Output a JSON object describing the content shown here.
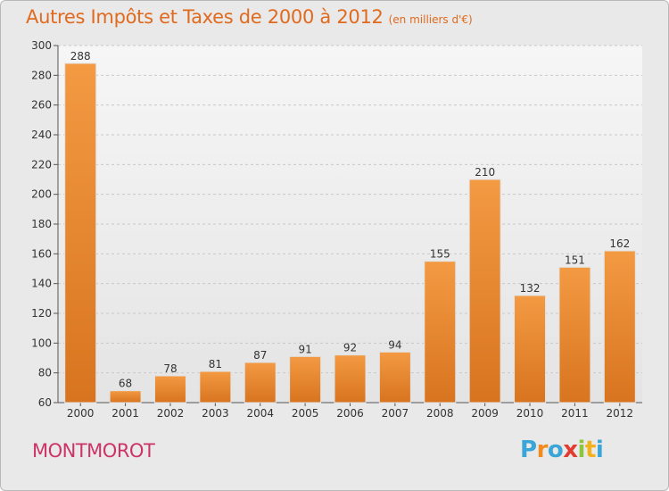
{
  "chart_data": {
    "type": "bar",
    "title": "Autres Impôts et Taxes de 2000 à 2012",
    "subtitle": "(en milliers d'€)",
    "categories": [
      "2000",
      "2001",
      "2002",
      "2003",
      "2004",
      "2005",
      "2006",
      "2007",
      "2008",
      "2009",
      "2010",
      "2011",
      "2012"
    ],
    "values": [
      288,
      68,
      78,
      81,
      87,
      91,
      92,
      94,
      155,
      210,
      132,
      151,
      162
    ],
    "ylim": [
      60,
      300
    ],
    "yticks": [
      60,
      80,
      100,
      120,
      140,
      160,
      180,
      200,
      220,
      240,
      260,
      280,
      300
    ],
    "grid": true,
    "bar_color": "#f39a43",
    "bar_color_dark": "#d8741f"
  },
  "location": "MONTMOROT",
  "brand": {
    "letters": [
      "P",
      "r",
      "o",
      "x",
      "i",
      "t",
      "i"
    ],
    "colors": [
      "#3aa6d8",
      "#f28a1e",
      "#3aa6d8",
      "#e23b2f",
      "#8cc63f",
      "#f2b11e",
      "#3aa6d8"
    ]
  }
}
